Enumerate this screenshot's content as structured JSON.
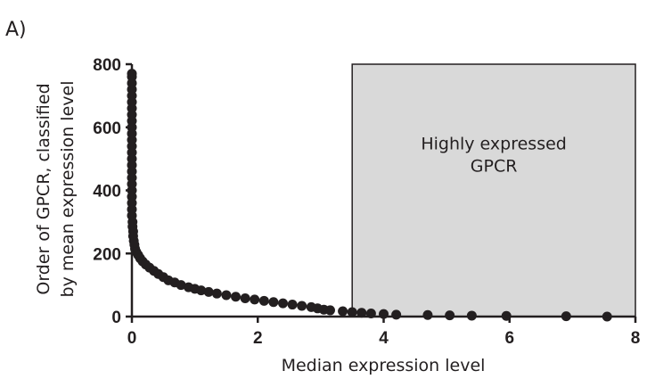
{
  "chart_data": {
    "type": "scatter",
    "panel_label": "A)",
    "xlabel": "Median expression level",
    "ylabel_lines": [
      "Order of GPCR, classified",
      "by mean expression level"
    ],
    "xlim": [
      0,
      8
    ],
    "ylim": [
      0,
      800
    ],
    "x_ticks": [
      "0",
      "2",
      "4",
      "6",
      "8"
    ],
    "y_ticks": [
      "0",
      "200",
      "400",
      "600",
      "800"
    ],
    "highlight_region": {
      "x_range": [
        3.5,
        8
      ],
      "y_range": [
        0,
        800
      ],
      "label_lines": [
        "Highly expressed",
        "GPCR"
      ],
      "fill": "#d9d9d9"
    },
    "marker_color": "#231f20",
    "points": [
      [
        0.0,
        770
      ],
      [
        0.0,
        760
      ],
      [
        0.0,
        740
      ],
      [
        0.0,
        720
      ],
      [
        0.0,
        700
      ],
      [
        0.0,
        680
      ],
      [
        0.0,
        660
      ],
      [
        0.0,
        640
      ],
      [
        0.0,
        620
      ],
      [
        0.0,
        600
      ],
      [
        0.0,
        580
      ],
      [
        0.0,
        560
      ],
      [
        0.0,
        540
      ],
      [
        0.0,
        520
      ],
      [
        0.0,
        500
      ],
      [
        0.0,
        480
      ],
      [
        0.0,
        460
      ],
      [
        0.0,
        440
      ],
      [
        0.0,
        420
      ],
      [
        0.0,
        400
      ],
      [
        0.0,
        380
      ],
      [
        0.0,
        360
      ],
      [
        0.0,
        340
      ],
      [
        0.0,
        320
      ],
      [
        0.01,
        300
      ],
      [
        0.01,
        285
      ],
      [
        0.02,
        270
      ],
      [
        0.02,
        255
      ],
      [
        0.03,
        240
      ],
      [
        0.04,
        228
      ],
      [
        0.05,
        215
      ],
      [
        0.07,
        205
      ],
      [
        0.1,
        195
      ],
      [
        0.13,
        185
      ],
      [
        0.17,
        175
      ],
      [
        0.22,
        165
      ],
      [
        0.28,
        155
      ],
      [
        0.35,
        145
      ],
      [
        0.42,
        135
      ],
      [
        0.5,
        125
      ],
      [
        0.58,
        115
      ],
      [
        0.68,
        108
      ],
      [
        0.78,
        100
      ],
      [
        0.9,
        93
      ],
      [
        1.0,
        88
      ],
      [
        1.1,
        83
      ],
      [
        1.22,
        78
      ],
      [
        1.35,
        73
      ],
      [
        1.5,
        68
      ],
      [
        1.65,
        63
      ],
      [
        1.8,
        58
      ],
      [
        1.95,
        54
      ],
      [
        2.1,
        50
      ],
      [
        2.25,
        46
      ],
      [
        2.4,
        42
      ],
      [
        2.55,
        38
      ],
      [
        2.7,
        34
      ],
      [
        2.85,
        30
      ],
      [
        2.95,
        26
      ],
      [
        3.05,
        22
      ],
      [
        3.15,
        20
      ],
      [
        3.35,
        17
      ],
      [
        3.5,
        14
      ],
      [
        3.65,
        12
      ],
      [
        3.8,
        10
      ],
      [
        4.0,
        8
      ],
      [
        4.2,
        6
      ],
      [
        4.7,
        5
      ],
      [
        5.05,
        4
      ],
      [
        5.4,
        3
      ],
      [
        5.95,
        2
      ],
      [
        6.9,
        1
      ],
      [
        7.55,
        0
      ]
    ]
  }
}
